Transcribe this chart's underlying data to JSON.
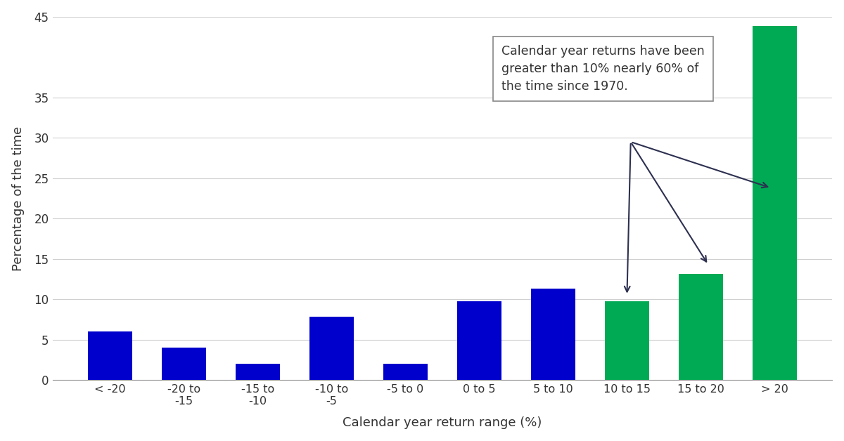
{
  "categories": [
    "< -20",
    "-20 to\n-15",
    "-15 to\n-10",
    "-10 to\n-5",
    "-5 to 0",
    "0 to 5",
    "5 to 10",
    "10 to 15",
    "15 to 20",
    "> 20"
  ],
  "values": [
    6.0,
    4.0,
    2.0,
    7.9,
    2.0,
    9.8,
    11.3,
    9.8,
    13.2,
    43.8
  ],
  "bar_colors": [
    "#0000cc",
    "#0000cc",
    "#0000cc",
    "#0000cc",
    "#0000cc",
    "#0000cc",
    "#0000cc",
    "#00aa55",
    "#00aa55",
    "#00aa55"
  ],
  "ylabel": "Percentage of the time",
  "xlabel": "Calendar year return range (%)",
  "ylim": [
    0,
    45
  ],
  "yticks": [
    0,
    5,
    10,
    15,
    20,
    25,
    30,
    35,
    45
  ],
  "annotation_text": "Calendar year returns have been\ngreater than 10% nearly 60% of\nthe time since 1970.",
  "background_color": "#ffffff",
  "grid_color": "#d0d0d0",
  "text_color": "#333333",
  "bar_width": 0.6,
  "arrow_color": "#2d3050",
  "figsize": [
    12.0,
    6.28
  ],
  "dpi": 100
}
